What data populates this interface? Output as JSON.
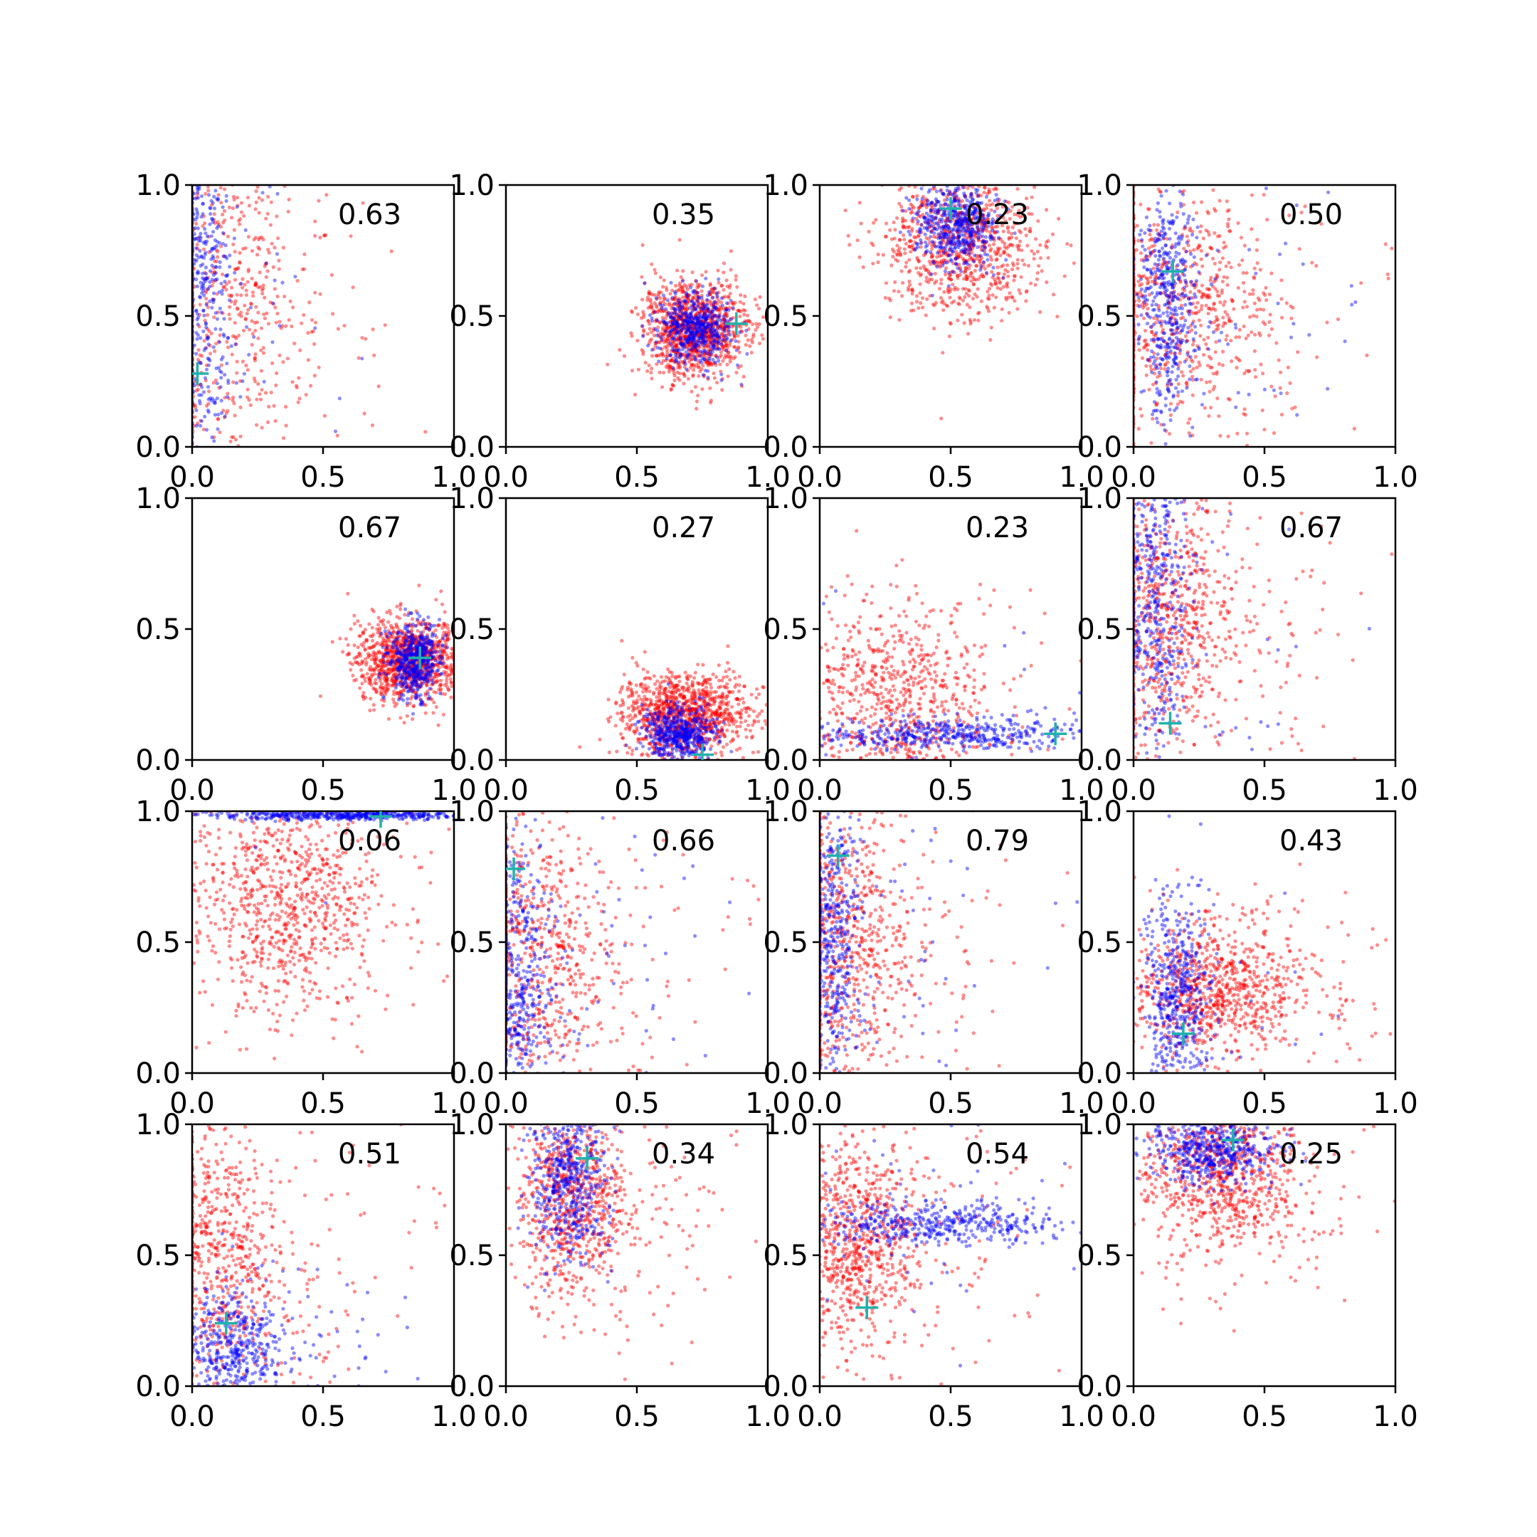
{
  "figure": {
    "rows": 4,
    "cols": 4,
    "colors": {
      "series_a": "#ff0000",
      "series_b": "#0000ff",
      "marker": "#20b2aa"
    },
    "tick_values": [
      "0.0",
      "0.5",
      "1.0"
    ]
  },
  "chart_data": [
    {
      "type": "scatter",
      "row": 0,
      "col": 0,
      "annotation": "0.63",
      "xlim": [
        0,
        1
      ],
      "ylim": [
        0,
        1
      ],
      "marker": [
        0.02,
        0.28
      ],
      "series": [
        {
          "color": "#ff0000",
          "cloud": {
            "shape": "vband",
            "cx": 0.06,
            "cy": 0.55,
            "sx": 0.18,
            "sy": 0.35,
            "n": 700,
            "rx": 0.6,
            "ry": 0.5
          }
        },
        {
          "color": "#0000ff",
          "cloud": {
            "shape": "vband",
            "cx": 0.03,
            "cy": 0.6,
            "sx": 0.06,
            "sy": 0.35,
            "n": 500,
            "rx": 0.35,
            "ry": 0.4
          }
        }
      ]
    },
    {
      "type": "scatter",
      "row": 0,
      "col": 1,
      "annotation": "0.35",
      "xlim": [
        0,
        1
      ],
      "ylim": [
        0,
        1
      ],
      "marker": [
        0.88,
        0.47
      ],
      "series": [
        {
          "color": "#ff0000",
          "cloud": {
            "shape": "blob",
            "cx": 0.72,
            "cy": 0.45,
            "sx": 0.1,
            "sy": 0.09,
            "n": 1100
          }
        },
        {
          "color": "#0000ff",
          "cloud": {
            "shape": "blob",
            "cx": 0.72,
            "cy": 0.45,
            "sx": 0.07,
            "sy": 0.07,
            "n": 500
          }
        }
      ]
    },
    {
      "type": "scatter",
      "row": 0,
      "col": 2,
      "annotation": "0.23",
      "xlim": [
        0,
        1
      ],
      "ylim": [
        0,
        1
      ],
      "marker": [
        0.5,
        0.91
      ],
      "series": [
        {
          "color": "#ff0000",
          "cloud": {
            "shape": "blob",
            "cx": 0.55,
            "cy": 0.78,
            "sx": 0.15,
            "sy": 0.14,
            "n": 900
          }
        },
        {
          "color": "#0000ff",
          "cloud": {
            "shape": "blob",
            "cx": 0.52,
            "cy": 0.85,
            "sx": 0.08,
            "sy": 0.08,
            "n": 500
          }
        }
      ]
    },
    {
      "type": "scatter",
      "row": 0,
      "col": 3,
      "annotation": "0.50",
      "xlim": [
        0,
        1
      ],
      "ylim": [
        0,
        1
      ],
      "marker": [
        0.15,
        0.67
      ],
      "series": [
        {
          "color": "#ff0000",
          "cloud": {
            "shape": "vband",
            "cx": 0.12,
            "cy": 0.55,
            "sx": 0.18,
            "sy": 0.22,
            "n": 800,
            "rx": 0.7,
            "ry": 0.3
          }
        },
        {
          "color": "#0000ff",
          "cloud": {
            "shape": "vband",
            "cx": 0.13,
            "cy": 0.55,
            "sx": 0.06,
            "sy": 0.22,
            "n": 500,
            "rx": 0.25,
            "ry": 0.2
          }
        }
      ]
    },
    {
      "type": "scatter",
      "row": 1,
      "col": 0,
      "annotation": "0.67",
      "xlim": [
        0,
        1
      ],
      "ylim": [
        0,
        1
      ],
      "marker": [
        0.87,
        0.39
      ],
      "series": [
        {
          "color": "#ff0000",
          "cloud": {
            "shape": "blob",
            "cx": 0.83,
            "cy": 0.38,
            "sx": 0.1,
            "sy": 0.08,
            "n": 1100
          }
        },
        {
          "color": "#0000ff",
          "cloud": {
            "shape": "blob",
            "cx": 0.85,
            "cy": 0.38,
            "sx": 0.05,
            "sy": 0.07,
            "n": 500
          }
        }
      ]
    },
    {
      "type": "scatter",
      "row": 1,
      "col": 1,
      "annotation": "0.27",
      "xlim": [
        0,
        1
      ],
      "ylim": [
        0,
        1
      ],
      "marker": [
        0.75,
        0.02
      ],
      "series": [
        {
          "color": "#ff0000",
          "cloud": {
            "shape": "blob",
            "cx": 0.68,
            "cy": 0.17,
            "sx": 0.12,
            "sy": 0.08,
            "n": 1100
          }
        },
        {
          "color": "#0000ff",
          "cloud": {
            "shape": "blob",
            "cx": 0.66,
            "cy": 0.1,
            "sx": 0.07,
            "sy": 0.05,
            "n": 500
          }
        }
      ]
    },
    {
      "type": "scatter",
      "row": 1,
      "col": 2,
      "annotation": "0.23",
      "xlim": [
        0,
        1
      ],
      "ylim": [
        0,
        1
      ],
      "marker": [
        0.9,
        0.1
      ],
      "series": [
        {
          "color": "#ff0000",
          "cloud": {
            "shape": "blob",
            "cx": 0.25,
            "cy": 0.2,
            "sx": 0.2,
            "sy": 0.18,
            "n": 900,
            "rx": 0.3,
            "ry": 0.6
          }
        },
        {
          "color": "#0000ff",
          "cloud": {
            "shape": "hband",
            "cx": 0.5,
            "cy": 0.1,
            "sx": 0.3,
            "sy": 0.03,
            "n": 500,
            "rx": 0.1,
            "ry": 0.35
          }
        }
      ]
    },
    {
      "type": "scatter",
      "row": 1,
      "col": 3,
      "annotation": "0.67",
      "xlim": [
        0,
        1
      ],
      "ylim": [
        0,
        1
      ],
      "marker": [
        0.14,
        0.14
      ],
      "series": [
        {
          "color": "#ff0000",
          "cloud": {
            "shape": "vband",
            "cx": 0.12,
            "cy": 0.55,
            "sx": 0.12,
            "sy": 0.25,
            "n": 800,
            "rx": 0.7,
            "ry": 0.3
          }
        },
        {
          "color": "#0000ff",
          "cloud": {
            "shape": "vband",
            "cx": 0.08,
            "cy": 0.6,
            "sx": 0.06,
            "sy": 0.3,
            "n": 500,
            "rx": 0.35,
            "ry": 0.3
          }
        }
      ]
    },
    {
      "type": "scatter",
      "row": 2,
      "col": 0,
      "annotation": "0.06",
      "xlim": [
        0,
        1
      ],
      "ylim": [
        0,
        1
      ],
      "marker": [
        0.72,
        0.98
      ],
      "series": [
        {
          "color": "#ff0000",
          "cloud": {
            "shape": "blob",
            "cx": 0.35,
            "cy": 0.65,
            "sx": 0.18,
            "sy": 0.2,
            "n": 900,
            "rx": 0.3,
            "ry": 0.3
          }
        },
        {
          "color": "#0000ff",
          "cloud": {
            "shape": "hband",
            "cx": 0.6,
            "cy": 0.985,
            "sx": 0.25,
            "sy": 0.01,
            "n": 500,
            "rx": 0.1,
            "ry": 0.02
          }
        }
      ]
    },
    {
      "type": "scatter",
      "row": 2,
      "col": 1,
      "annotation": "0.66",
      "xlim": [
        0,
        1
      ],
      "ylim": [
        0,
        1
      ],
      "marker": [
        0.03,
        0.78
      ],
      "series": [
        {
          "color": "#ff0000",
          "cloud": {
            "shape": "vband",
            "cx": 0.08,
            "cy": 0.45,
            "sx": 0.15,
            "sy": 0.28,
            "n": 800,
            "rx": 0.7,
            "ry": 0.4
          }
        },
        {
          "color": "#0000ff",
          "cloud": {
            "shape": "vband",
            "cx": 0.05,
            "cy": 0.35,
            "sx": 0.06,
            "sy": 0.28,
            "n": 500,
            "rx": 0.4,
            "ry": 0.4
          }
        }
      ]
    },
    {
      "type": "scatter",
      "row": 2,
      "col": 2,
      "annotation": "0.79",
      "xlim": [
        0,
        1
      ],
      "ylim": [
        0,
        1
      ],
      "marker": [
        0.07,
        0.83
      ],
      "series": [
        {
          "color": "#ff0000",
          "cloud": {
            "shape": "vband",
            "cx": 0.08,
            "cy": 0.5,
            "sx": 0.12,
            "sy": 0.28,
            "n": 800,
            "rx": 0.7,
            "ry": 0.4
          }
        },
        {
          "color": "#0000ff",
          "cloud": {
            "shape": "vband",
            "cx": 0.05,
            "cy": 0.5,
            "sx": 0.05,
            "sy": 0.3,
            "n": 500,
            "rx": 0.45,
            "ry": 0.4
          }
        }
      ]
    },
    {
      "type": "scatter",
      "row": 2,
      "col": 3,
      "annotation": "0.43",
      "xlim": [
        0,
        1
      ],
      "ylim": [
        0,
        1
      ],
      "marker": [
        0.19,
        0.15
      ],
      "series": [
        {
          "color": "#ff0000",
          "cloud": {
            "shape": "hband",
            "cx": 0.3,
            "cy": 0.32,
            "sx": 0.15,
            "sy": 0.12,
            "n": 900,
            "rx": 0.6,
            "ry": 0.25
          }
        },
        {
          "color": "#0000ff",
          "cloud": {
            "shape": "vband",
            "cx": 0.17,
            "cy": 0.3,
            "sx": 0.06,
            "sy": 0.18,
            "n": 500,
            "rx": 0.15,
            "ry": 0.35
          }
        }
      ]
    },
    {
      "type": "scatter",
      "row": 3,
      "col": 0,
      "annotation": "0.51",
      "xlim": [
        0,
        1
      ],
      "ylim": [
        0,
        1
      ],
      "marker": [
        0.13,
        0.24
      ],
      "series": [
        {
          "color": "#ff0000",
          "cloud": {
            "shape": "vband",
            "cx": 0.08,
            "cy": 0.5,
            "sx": 0.12,
            "sy": 0.25,
            "n": 800,
            "rx": 0.7,
            "ry": 0.4
          }
        },
        {
          "color": "#0000ff",
          "cloud": {
            "shape": "blob",
            "cx": 0.15,
            "cy": 0.15,
            "sx": 0.1,
            "sy": 0.12,
            "n": 500,
            "rx": 0.4,
            "ry": 0.15
          }
        }
      ]
    },
    {
      "type": "scatter",
      "row": 3,
      "col": 1,
      "annotation": "0.34",
      "xlim": [
        0,
        1
      ],
      "ylim": [
        0,
        1
      ],
      "marker": [
        0.31,
        0.87
      ],
      "series": [
        {
          "color": "#ff0000",
          "cloud": {
            "shape": "blob",
            "cx": 0.25,
            "cy": 0.72,
            "sx": 0.1,
            "sy": 0.18,
            "n": 900,
            "rx": 0.6,
            "ry": 0.3
          }
        },
        {
          "color": "#0000ff",
          "cloud": {
            "shape": "blob",
            "cx": 0.24,
            "cy": 0.78,
            "sx": 0.07,
            "sy": 0.15,
            "n": 500
          }
        }
      ]
    },
    {
      "type": "scatter",
      "row": 3,
      "col": 2,
      "annotation": "0.54",
      "xlim": [
        0,
        1
      ],
      "ylim": [
        0,
        1
      ],
      "marker": [
        0.18,
        0.3
      ],
      "series": [
        {
          "color": "#ff0000",
          "cloud": {
            "shape": "blob",
            "cx": 0.12,
            "cy": 0.55,
            "sx": 0.12,
            "sy": 0.2,
            "n": 900,
            "rx": 0.5,
            "ry": 0.3
          }
        },
        {
          "color": "#0000ff",
          "cloud": {
            "shape": "hband",
            "cx": 0.45,
            "cy": 0.62,
            "sx": 0.25,
            "sy": 0.04,
            "n": 500,
            "rx": 0.1,
            "ry": 0.4
          }
        }
      ]
    },
    {
      "type": "scatter",
      "row": 3,
      "col": 3,
      "annotation": "0.25",
      "xlim": [
        0,
        1
      ],
      "ylim": [
        0,
        1
      ],
      "marker": [
        0.38,
        0.94
      ],
      "series": [
        {
          "color": "#ff0000",
          "cloud": {
            "shape": "blob",
            "cx": 0.32,
            "cy": 0.8,
            "sx": 0.15,
            "sy": 0.14,
            "n": 900,
            "rx": 0.3,
            "ry": 0.4
          }
        },
        {
          "color": "#0000ff",
          "cloud": {
            "shape": "blob",
            "cx": 0.3,
            "cy": 0.9,
            "sx": 0.12,
            "sy": 0.06,
            "n": 500
          }
        }
      ]
    }
  ]
}
